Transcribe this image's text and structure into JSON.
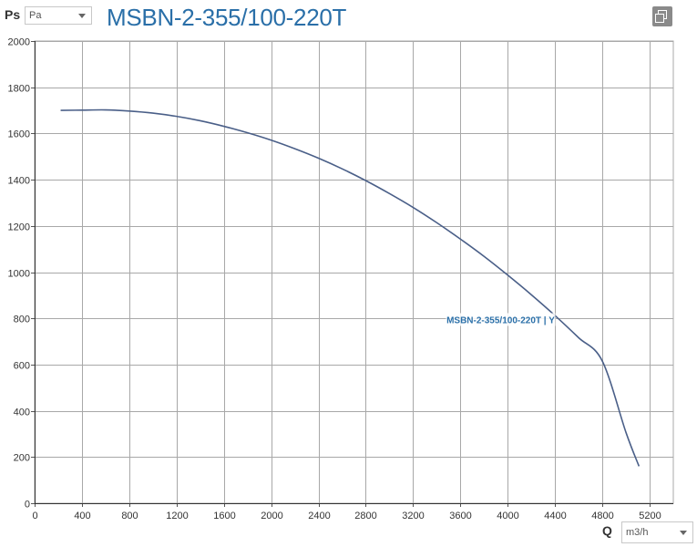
{
  "header": {
    "y_axis_symbol": "Ps",
    "y_unit_selected": "Pa",
    "title": "MSBN-2-355/100-220T",
    "copy_icon": "copy-icon"
  },
  "footer": {
    "x_axis_symbol": "Q",
    "x_unit_selected": "m3/h"
  },
  "chart_data": {
    "type": "line",
    "title": "MSBN-2-355/100-220T",
    "xlabel": "Q",
    "ylabel": "Ps",
    "xlim": [
      0,
      5400
    ],
    "ylim": [
      0,
      2000
    ],
    "x_ticks": [
      0,
      400,
      800,
      1200,
      1600,
      2000,
      2400,
      2800,
      3200,
      3600,
      4000,
      4400,
      4800,
      5200
    ],
    "y_ticks": [
      0,
      200,
      400,
      600,
      800,
      1000,
      1200,
      1400,
      1600,
      1800,
      2000
    ],
    "grid": true,
    "series": [
      {
        "name": "MSBN-2-355/100-220T | Y",
        "color": "#4a5f88",
        "x": [
          220,
          400,
          600,
          800,
          1000,
          1200,
          1400,
          1600,
          1800,
          2000,
          2200,
          2400,
          2600,
          2800,
          3000,
          3200,
          3400,
          3600,
          3800,
          4000,
          4200,
          4400,
          4600,
          4800,
          5000,
          5110
        ],
        "y": [
          1700,
          1701,
          1702,
          1697,
          1688,
          1674,
          1655,
          1631,
          1603,
          1571,
          1534,
          1493,
          1447,
          1396,
          1340,
          1280,
          1214,
          1143,
          1068,
          987,
          902,
          812,
          716,
          615,
          306,
          160
        ]
      }
    ],
    "series_label": {
      "text": "MSBN-2-355/100-220T | Y",
      "x": 3940,
      "y": 795
    }
  }
}
